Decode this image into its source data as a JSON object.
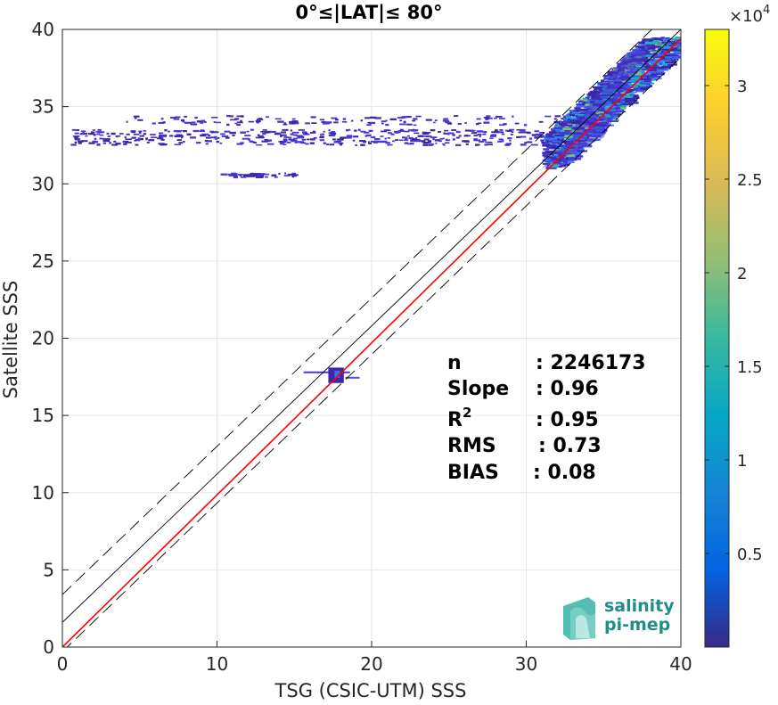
{
  "chart_data": {
    "type": "heatmap",
    "title": "0°≤|LAT|≤ 80°",
    "xlabel": "TSG (CSIC-UTM) SSS",
    "ylabel": "Satellite SSS",
    "xlim": [
      0,
      40
    ],
    "ylim": [
      0,
      40
    ],
    "x_ticks": [
      "0",
      "10",
      "20",
      "30",
      "40"
    ],
    "y_ticks": [
      "0",
      "5",
      "10",
      "15",
      "20",
      "25",
      "30",
      "35",
      "40"
    ],
    "grid": true,
    "lines": [
      {
        "name": "identity",
        "color": "#000000",
        "style": "solid",
        "x": [
          0,
          40
        ],
        "y": [
          1.6,
          40
        ]
      },
      {
        "name": "upper bound",
        "color": "#000000",
        "style": "dashed",
        "x": [
          0,
          40
        ],
        "y": [
          3.4,
          41.8
        ]
      },
      {
        "name": "lower bound",
        "color": "#000000",
        "style": "dashed",
        "x": [
          0,
          40
        ],
        "y": [
          -0.3,
          38.2
        ]
      },
      {
        "name": "regression fit",
        "color": "#ff0000",
        "style": "solid",
        "x": [
          0,
          40
        ],
        "y": [
          0,
          39.4
        ]
      }
    ],
    "density_regions": [
      {
        "x": [
          31,
          40
        ],
        "y": [
          31,
          39.5
        ],
        "level": 0.05
      },
      {
        "x": [
          0.5,
          31
        ],
        "y": [
          32.5,
          33.5
        ],
        "level": 0.02
      },
      {
        "x": [
          4,
          35
        ],
        "y": [
          33.8,
          34.4
        ],
        "level": 0.015
      },
      {
        "x": [
          10,
          15
        ],
        "y": [
          30.4,
          30.7
        ],
        "level": 0.01
      },
      {
        "x": [
          15.5,
          19
        ],
        "y": [
          17,
          18
        ],
        "level": 0.03
      }
    ],
    "colorbar": {
      "min": 0,
      "max": 33000,
      "multiplier": "×10",
      "exponent": "4",
      "ticks": [
        "0.5",
        "1",
        "1.5",
        "2",
        "2.5",
        "3"
      ],
      "tick_values": [
        5000,
        10000,
        15000,
        20000,
        25000,
        30000
      ],
      "colormap": "parula"
    },
    "stats": [
      {
        "label": "n",
        "value": ": 2246173"
      },
      {
        "label": "Slope",
        "value": ": 0.96"
      },
      {
        "label": "R",
        "sup": "2",
        "value": ": 0.95"
      },
      {
        "label": "RMS",
        "value": ": 0.73"
      },
      {
        "label": "BIAS",
        "value": ": 0.08"
      }
    ]
  },
  "logo": {
    "line1": "salinity",
    "line2": "pi-mep"
  }
}
